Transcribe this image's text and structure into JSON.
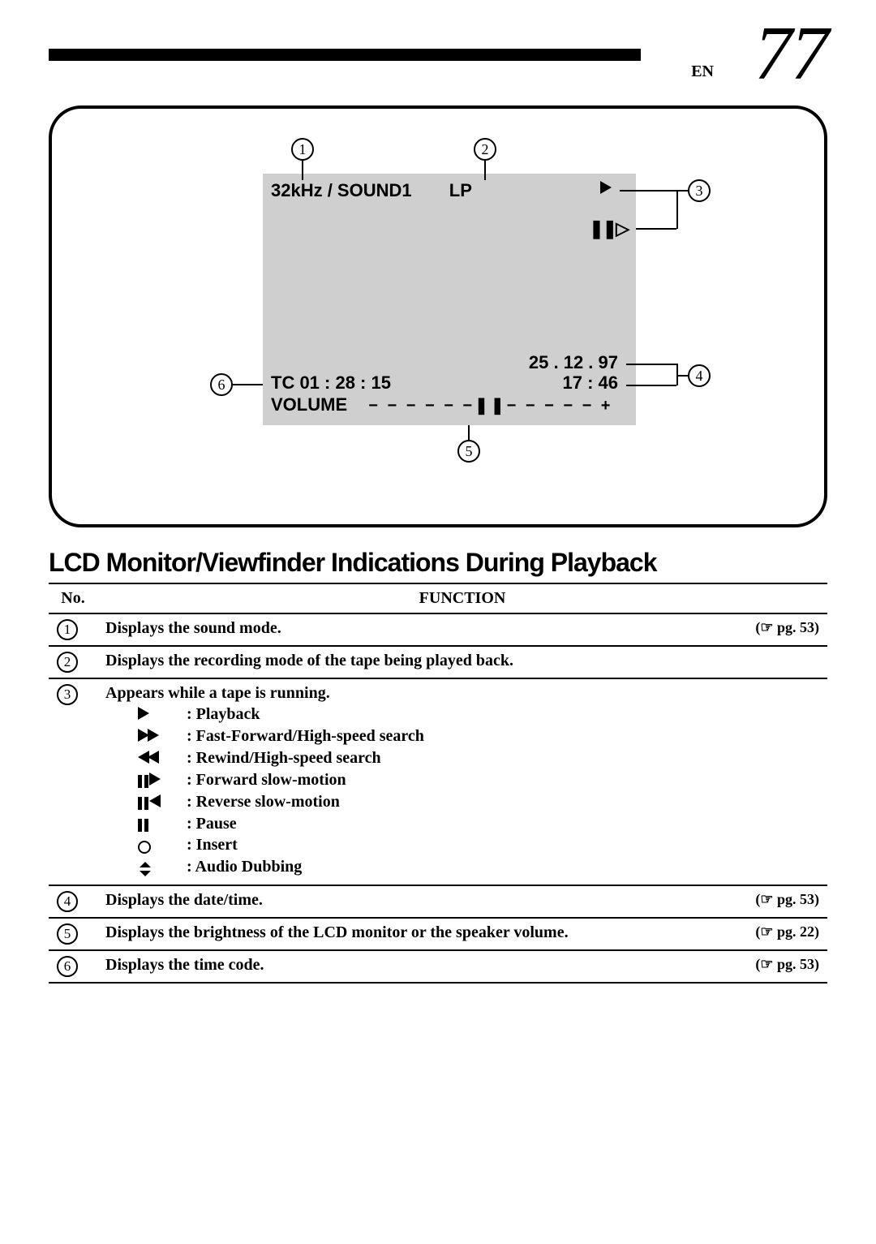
{
  "header": {
    "lang": "EN",
    "page_number": "77"
  },
  "lcd": {
    "sound_mode": "32kHz / SOUND1",
    "rec_mode": "LP",
    "play_icon": "▶",
    "pause_small": "❚❚▷",
    "date": "25 . 12 . 97",
    "time": "17 : 46",
    "timecode": "TC  01 : 28 : 15",
    "volume_label": "VOLUME",
    "volume_bar": "−  − − − − −❚❚− − − − −  +"
  },
  "callouts": {
    "1": "1",
    "2": "2",
    "3": "3",
    "4": "4",
    "5": "5",
    "6": "6"
  },
  "section_title": "LCD Monitor/Viewfinder Indications During Playback",
  "table": {
    "headers": {
      "no": "No.",
      "func": "FUNCTION"
    },
    "rows": [
      {
        "n": "1",
        "text": "Displays the sound mode.",
        "ref": "(☞ pg. 53)"
      },
      {
        "n": "2",
        "text": "Displays the recording mode of the tape being played back."
      },
      {
        "n": "3",
        "text": "Appears while a tape is running.",
        "subs": [
          {
            "icon": "play",
            "label": ": Playback"
          },
          {
            "icon": "ff",
            "label": ": Fast-Forward/High-speed search"
          },
          {
            "icon": "rw",
            "label": ": Rewind/High-speed search"
          },
          {
            "icon": "fslow",
            "label": ": Forward slow-motion"
          },
          {
            "icon": "rslow",
            "label": ": Reverse slow-motion"
          },
          {
            "icon": "pause",
            "label": ": Pause"
          },
          {
            "icon": "insert",
            "label": ": Insert"
          },
          {
            "icon": "dub",
            "label": ": Audio Dubbing"
          }
        ]
      },
      {
        "n": "4",
        "text": "Displays the date/time.",
        "ref": "(☞ pg. 53)"
      },
      {
        "n": "5",
        "text": "Displays the brightness of the LCD monitor or the speaker volume.",
        "ref": "(☞ pg. 22)"
      },
      {
        "n": "6",
        "text": "Displays the time code.",
        "ref": "(☞ pg. 53)"
      }
    ]
  }
}
